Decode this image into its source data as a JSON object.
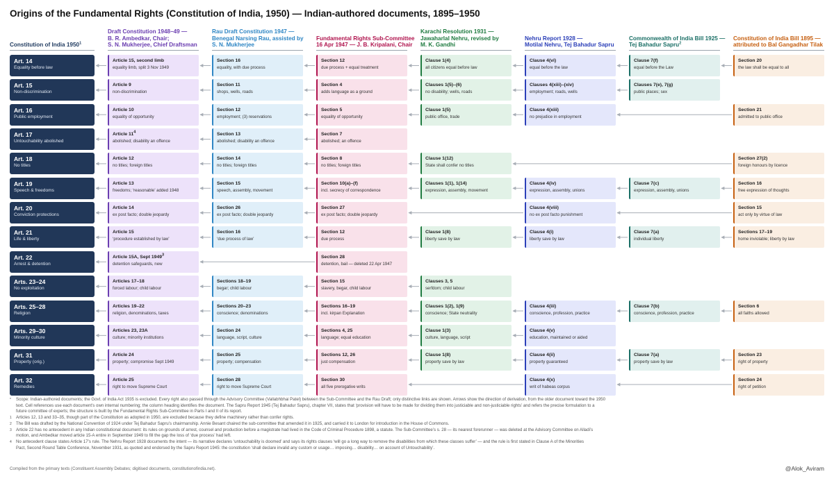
{
  "title": "Origins of the Fundamental Rights (Constitution of India, 1950) — Indian-authored documents, 1895–1950",
  "columns": [
    {
      "id": "c0",
      "lines": [
        "Constitution of India 1950"
      ],
      "sup": "1",
      "color": "#1f3a5f"
    },
    {
      "id": "c1",
      "lines": [
        "Draft Constitution 1948–49 —",
        "B. R. Ambedkar, Chair;",
        "S. N. Mukherjee, Chief Draftsman"
      ],
      "sup": "",
      "color": "#6a3db0"
    },
    {
      "id": "c2",
      "lines": [
        "Rau Draft Constitution 1947 —",
        "Benegal Narsing Rau, assisted by",
        "S. N. Mukherjee"
      ],
      "sup": "",
      "color": "#2f86c4"
    },
    {
      "id": "c3",
      "lines": [
        "Fundamental Rights Sub-Committee",
        "16 Apr 1947 — J. B. Kripalani, Chair"
      ],
      "sup": "",
      "color": "#b0144e"
    },
    {
      "id": "c4",
      "lines": [
        "Karachi Resolution 1931 —",
        "Jawaharlal Nehru, revised by",
        "M. K. Gandhi"
      ],
      "sup": "",
      "color": "#1e7a3f"
    },
    {
      "id": "c5",
      "lines": [
        "Nehru Report 1928 —",
        "Motilal Nehru, Tej Bahadur Sapru"
      ],
      "sup": "",
      "color": "#2b3fb8"
    },
    {
      "id": "c6",
      "lines": [
        "Commonwealth of India Bill 1925 —",
        "Tej Bahadur Sapru"
      ],
      "sup": "2",
      "color": "#1b6f66"
    },
    {
      "id": "c7",
      "lines": [
        "Constitution of India Bill 1895 —",
        "attributed to Bal Gangadhar Tilak"
      ],
      "sup": "",
      "color": "#c65f10"
    }
  ],
  "style": {
    "bg": [
      "",
      "#ede2fa",
      "#e0eff9",
      "#f9e1ea",
      "#e2f2e7",
      "#e4e7fb",
      "#e1f0ee",
      "#faeee2"
    ],
    "bar": [
      "",
      "#6a3db0",
      "#2f86c4",
      "#b0144e",
      "#1e7a3f",
      "#2b3fb8",
      "#1b6f66",
      "#c65f10"
    ],
    "arrow": "#a7adb5"
  },
  "rows": [
    {
      "art": "Art. 14",
      "sub": "Equality before law",
      "cells": [
        {
          "col": 1,
          "h": "Article 15, second limb",
          "d": "equality limb, split 3 Nov 1949"
        },
        {
          "col": 2,
          "h": "Section 16",
          "d": "equality, with due process"
        },
        {
          "col": 3,
          "h": "Section 12",
          "d": "due process + equal treatment"
        },
        {
          "col": 4,
          "h": "Clause 1(4)",
          "d": "all citizens equal before law"
        },
        {
          "col": 5,
          "h": "Clause 4(vi)",
          "d": "equal before the law"
        },
        {
          "col": 6,
          "h": "Clause 7(f)",
          "d": "equal before the Law"
        },
        {
          "col": 7,
          "h": "Section 20",
          "d": "the law shall be equal to all"
        }
      ]
    },
    {
      "art": "Art. 15",
      "sub": "Non-discrimination",
      "cells": [
        {
          "col": 1,
          "h": "Article 9",
          "d": "non-discrimination"
        },
        {
          "col": 2,
          "h": "Section 11",
          "d": "shops, wells, roads"
        },
        {
          "col": 3,
          "h": "Section 4",
          "d": "adds language as a ground"
        },
        {
          "col": 4,
          "h": "Clauses 1(5)–(6)",
          "d": "no disability; wells, roads"
        },
        {
          "col": 5,
          "h": "Clauses 4(xiii)–(xiv)",
          "d": "employment; roads, wells"
        },
        {
          "col": 6,
          "h": "Clauses 7(e), 7(g)",
          "d": "public places; sex"
        }
      ]
    },
    {
      "art": "Art. 16",
      "sub": "Public employment",
      "cells": [
        {
          "col": 1,
          "h": "Article 10",
          "d": "equality of opportunity"
        },
        {
          "col": 2,
          "h": "Section 12",
          "d": "employment; (3) reservations"
        },
        {
          "col": 3,
          "h": "Section 5",
          "d": "equality of opportunity"
        },
        {
          "col": 4,
          "h": "Clause 1(5)",
          "d": "public office, trade"
        },
        {
          "col": 5,
          "h": "Clause 4(xiii)",
          "d": "no prejudice in employment"
        },
        {
          "col": 7,
          "h": "Section 21",
          "d": "admitted to public office"
        }
      ]
    },
    {
      "art": "Art. 17",
      "sub": "Untouchability abolished",
      "cells": [
        {
          "col": 1,
          "h": "Article 11",
          "hsup": "4",
          "d": "abolished; disability an offence"
        },
        {
          "col": 2,
          "h": "Section 13",
          "d": "abolished; disability an offence"
        },
        {
          "col": 3,
          "h": "Section 7",
          "d": "abolished; an offence"
        }
      ]
    },
    {
      "art": "Art. 18",
      "sub": "No titles",
      "cells": [
        {
          "col": 1,
          "h": "Article 12",
          "d": "no titles; foreign titles"
        },
        {
          "col": 2,
          "h": "Section 14",
          "d": "no titles; foreign titles"
        },
        {
          "col": 3,
          "h": "Section 8",
          "d": "no titles; foreign titles"
        },
        {
          "col": 4,
          "h": "Clause 1(12)",
          "d": "State shall confer no titles"
        },
        {
          "col": 7,
          "h": "Section 27(2)",
          "d": "foreign honours by licence"
        }
      ]
    },
    {
      "art": "Art. 19",
      "sub": "Speech & freedoms",
      "cells": [
        {
          "col": 1,
          "h": "Article 13",
          "d": "freedoms; ‘reasonable’ added 1948"
        },
        {
          "col": 2,
          "h": "Section 15",
          "d": "speech, assembly, movement"
        },
        {
          "col": 3,
          "h": "Section 10(a)–(f)",
          "d": "incl. secrecy of correspondence"
        },
        {
          "col": 4,
          "h": "Clauses 1(1), 1(14)",
          "d": "expression, assembly, movement"
        },
        {
          "col": 5,
          "h": "Clause 4(iv)",
          "d": "expression, assembly, unions"
        },
        {
          "col": 6,
          "h": "Clause 7(c)",
          "d": "expression, assembly, unions"
        },
        {
          "col": 7,
          "h": "Section 16",
          "d": "free expression of thoughts"
        }
      ]
    },
    {
      "art": "Art. 20",
      "sub": "Conviction protections",
      "cells": [
        {
          "col": 1,
          "h": "Article 14",
          "d": "ex post facto; double jeopardy"
        },
        {
          "col": 2,
          "h": "Section 26",
          "d": "ex post facto; double jeopardy"
        },
        {
          "col": 3,
          "h": "Section 27",
          "d": "ex post facto; double jeopardy"
        },
        {
          "col": 5,
          "h": "Clause 4(viii)",
          "d": "no ex post facto punishment"
        },
        {
          "col": 7,
          "h": "Section 15",
          "d": "act only by virtue of law"
        }
      ]
    },
    {
      "art": "Art. 21",
      "sub": "Life & liberty",
      "cells": [
        {
          "col": 1,
          "h": "Article 15",
          "d": "‘procedure established by law’"
        },
        {
          "col": 2,
          "h": "Section 16",
          "d": "‘due process of law’"
        },
        {
          "col": 3,
          "h": "Section 12",
          "d": "due process"
        },
        {
          "col": 4,
          "h": "Clause 1(8)",
          "d": "liberty save by law"
        },
        {
          "col": 5,
          "h": "Clause 4(i)",
          "d": "liberty save by law"
        },
        {
          "col": 6,
          "h": "Clause 7(a)",
          "d": "individual liberty"
        },
        {
          "col": 7,
          "h": "Sections 17–19",
          "d": "home inviolable; liberty by law"
        }
      ]
    },
    {
      "art": "Art. 22",
      "sub": "Arrest & detention",
      "cells": [
        {
          "col": 1,
          "h": "Article 15A, Sept 1949",
          "hsup": "3",
          "d": "detention safeguards, new"
        },
        {
          "col": 3,
          "h": "Section 28",
          "d": "detention, bail — deleted 22 Apr 1947"
        }
      ]
    },
    {
      "art": "Arts. 23–24",
      "sub": "No exploitation",
      "cells": [
        {
          "col": 1,
          "h": "Articles 17–18",
          "d": "forced labour; child labour"
        },
        {
          "col": 2,
          "h": "Sections 18–19",
          "d": "begar; child labour"
        },
        {
          "col": 3,
          "h": "Section 15",
          "d": "slavery, begar, child labour"
        },
        {
          "col": 4,
          "h": "Clauses 3, 5",
          "d": "serfdom; child labour"
        }
      ]
    },
    {
      "art": "Arts. 25–28",
      "sub": "Religion",
      "cells": [
        {
          "col": 1,
          "h": "Articles 19–22",
          "d": "religion, denominations, taxes"
        },
        {
          "col": 2,
          "h": "Sections 20–23",
          "d": "conscience; denominations"
        },
        {
          "col": 3,
          "h": "Sections 16–19",
          "d": "incl. kirpan Explanation"
        },
        {
          "col": 4,
          "h": "Clauses 1(2), 1(9)",
          "d": "conscience; State neutrality"
        },
        {
          "col": 5,
          "h": "Clause 4(iii)",
          "d": "conscience, profession, practice"
        },
        {
          "col": 6,
          "h": "Clause 7(b)",
          "d": "conscience, profession, practice"
        },
        {
          "col": 7,
          "h": "Section 6",
          "d": "all faiths allowed"
        }
      ]
    },
    {
      "art": "Arts. 29–30",
      "sub": "Minority culture",
      "cells": [
        {
          "col": 1,
          "h": "Articles 23, 23A",
          "d": "culture; minority institutions"
        },
        {
          "col": 2,
          "h": "Section 24",
          "d": "language, script, culture"
        },
        {
          "col": 3,
          "h": "Sections 4, 25",
          "d": "language; equal education"
        },
        {
          "col": 4,
          "h": "Clause 1(3)",
          "d": "culture, language, script"
        },
        {
          "col": 5,
          "h": "Clause 4(v)",
          "d": "education, maintained or aided"
        }
      ]
    },
    {
      "art": "Art. 31",
      "sub": "Property (orig.)",
      "cells": [
        {
          "col": 1,
          "h": "Article 24",
          "d": "property; compromise Sept 1949"
        },
        {
          "col": 2,
          "h": "Section 25",
          "d": "property; compensation"
        },
        {
          "col": 3,
          "h": "Sections 12, 26",
          "d": "just compensation"
        },
        {
          "col": 4,
          "h": "Clause 1(8)",
          "d": "property save by law"
        },
        {
          "col": 5,
          "h": "Clause 4(ii)",
          "d": "property guaranteed"
        },
        {
          "col": 6,
          "h": "Clause 7(a)",
          "d": "property save by law"
        },
        {
          "col": 7,
          "h": "Section 23",
          "d": "right of property"
        }
      ]
    },
    {
      "art": "Art. 32",
      "sub": "Remedies",
      "cells": [
        {
          "col": 1,
          "h": "Article 25",
          "d": "right to move Supreme Court"
        },
        {
          "col": 2,
          "h": "Section 28",
          "d": "right to move Supreme Court"
        },
        {
          "col": 3,
          "h": "Section 30",
          "d": "all five prerogative writs"
        },
        {
          "col": 5,
          "h": "Clause 4(x)",
          "d": "writ of habeas corpus"
        },
        {
          "col": 7,
          "h": "Section 24",
          "d": "right of petition"
        }
      ]
    }
  ],
  "footnotes": [
    {
      "mark": "*",
      "lines": [
        "Scope: Indian-authored documents; the Govt. of India Act 1935 is excluded. Every right also passed through the Advisory Committee (Vallabhbhai Patel) between the Sub-Committee and the Rau Draft; only distinctive links are shown. Arrows show the direction of derivation, from the older document toward the 1950",
        "text. Cell references use each document’s own internal numbering; the column heading identifies the document. The Sapru Report 1945 (Tej Bahadur Sapru), chapter VII, states that ‘provision will have to be made for dividing them into justiciable and non-justiciable rights’ and refers the precise formulation to a",
        "future committee of experts; the structure is built by the Fundamental Rights Sub-Committee in Parts I and II of its report."
      ]
    },
    {
      "mark": "1",
      "lines": [
        "Articles 12, 13 and 33–35, though part of the Constitution as adopted in 1950, are excluded because they define machinery rather than confer rights."
      ]
    },
    {
      "mark": "2",
      "lines": [
        "The Bill was drafted by the National Convention of 1924 under Tej Bahadur Sapru’s chairmanship. Annie Besant chaired the sub-committee that amended it in 1925, and carried it to London for introduction in the House of Commons."
      ]
    },
    {
      "mark": "3",
      "lines": [
        "Article 22 has no antecedent in any Indian constitutional document: its rules on grounds of arrest, counsel and production before a magistrate had lived in the Code of Criminal Procedure 1898, a statute. The Sub-Committee’s s. 28 — its nearest forerunner — was deleted at the Advisory Committee on Alladi’s",
        "motion, and Ambedkar moved article 15-A entire in September 1949 to fill the gap the loss of ‘due process’ had left."
      ]
    },
    {
      "mark": "4",
      "lines": [
        "No antecedent clause states Article 17’s rule. The Nehru Report 1928 documents the intent — its narrative declares ‘untouchability is doomed’ and says its rights clauses ‘will go a long way to remove the disabilities from which these classes suffer’ — and the rule is first stated in Clause A of the Minorities",
        "Pact, Second Round Table Conference, November 1931, as quoted and endorsed by the Sapru Report 1945: the constitution ‘shall declare invalid any custom or usage… imposing… disability… on account of Untouchability’."
      ]
    }
  ],
  "source": "Compiled from the primary texts (Constituent Assembly Debates; digitised documents, constitutionofindia.net).",
  "handle": "@Alok_Aviram"
}
